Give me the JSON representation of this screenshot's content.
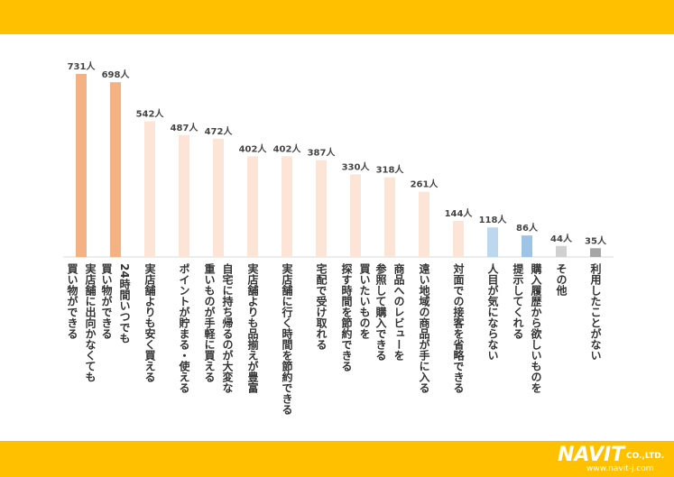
{
  "chart_data": {
    "type": "bar",
    "categories": [
      "実店舗に出向かなくても\n買い物ができる",
      "24時間いつでも\n買い物ができる",
      "実店舗よりも安く買える",
      "ポイントが貯まる・使える",
      "自宅に持ち帰るのが大変な\n重いものが手軽に買える",
      "実店舗よりも品揃えが豊富",
      "実店舗に行く時間を節約できる",
      "宅配で受け取れる",
      "買いたいものを\n探す時間を節約できる",
      "商品へのレビューを\n参照して購入できる",
      "遠い地域の商品が手に入る",
      "対面での接客を省略できる",
      "人目が気にならない",
      "購入履歴から欲しいものを\n提示してくれる",
      "その他",
      "利用したことがない"
    ],
    "values": [
      731,
      698,
      542,
      487,
      472,
      402,
      402,
      387,
      330,
      318,
      261,
      144,
      118,
      86,
      44,
      35
    ],
    "value_labels": [
      "731人",
      "698人",
      "542人",
      "487人",
      "472人",
      "402人",
      "402人",
      "387人",
      "330人",
      "318人",
      "261人",
      "144人",
      "118人",
      "86人",
      "44人",
      "35人"
    ],
    "colors": [
      "#f4b183",
      "#f4b183",
      "#fce4d6",
      "#fce4d6",
      "#fce4d6",
      "#fce4d6",
      "#fce4d6",
      "#fce4d6",
      "#fce4d6",
      "#fce4d6",
      "#fce4d6",
      "#fce4d6",
      "#bdd7ee",
      "#9dc3e6",
      "#d0d0d0",
      "#a6a6a6"
    ]
  },
  "footer": {
    "logo": "NAVIT",
    "company": "CO.,LTD.",
    "url": "www.navit-j.com"
  }
}
